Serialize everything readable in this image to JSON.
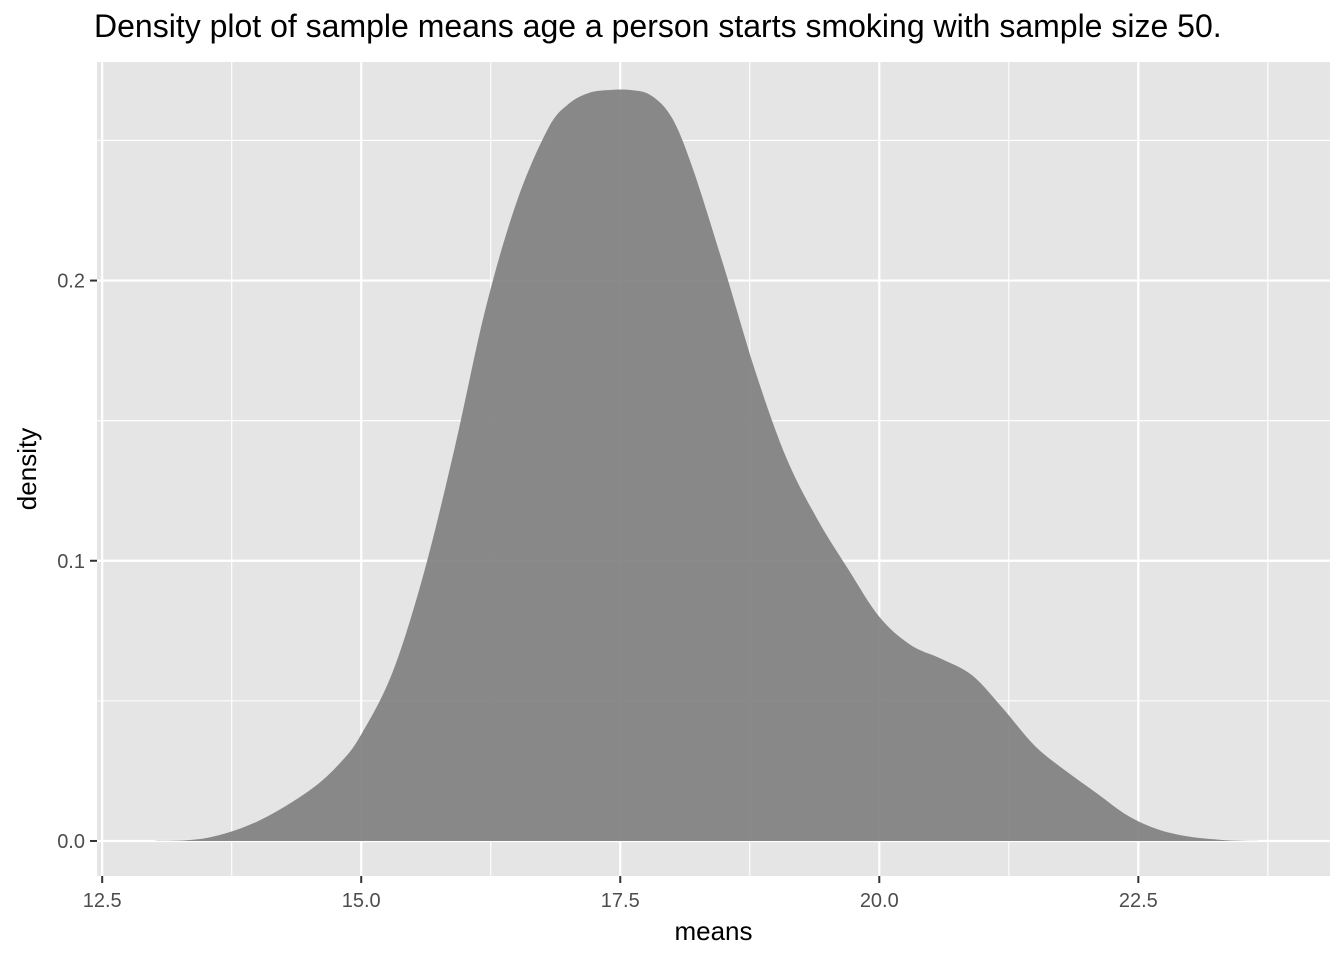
{
  "chart_data": {
    "type": "area",
    "title": "Density plot of sample means age a person starts smoking with sample size 50.",
    "xlabel": "means",
    "ylabel": "density",
    "xlim": [
      12.45,
      24.35
    ],
    "ylim": [
      -0.0125,
      0.278
    ],
    "x_ticks": [
      12.5,
      15.0,
      17.5,
      20.0,
      22.5
    ],
    "x_tick_labels": [
      "12.5",
      "15.0",
      "17.5",
      "20.0",
      "22.5"
    ],
    "y_ticks": [
      0.0,
      0.1,
      0.2
    ],
    "y_tick_labels": [
      "0.0",
      "0.1",
      "0.2"
    ],
    "grid": true,
    "colors": {
      "panel": "#e5e5e5",
      "grid": "#ffffff",
      "fill": "#808080"
    },
    "series": [
      {
        "x": [
          13.0,
          13.5,
          14.0,
          14.5,
          14.8,
          15.0,
          15.3,
          15.6,
          15.9,
          16.2,
          16.5,
          16.8,
          17.0,
          17.2,
          17.4,
          17.6,
          17.8,
          18.0,
          18.2,
          18.5,
          18.8,
          19.1,
          19.4,
          19.7,
          20.0,
          20.3,
          20.6,
          20.9,
          21.2,
          21.5,
          21.8,
          22.1,
          22.4,
          22.7,
          23.0,
          23.3,
          23.5,
          23.8
        ],
        "y": [
          0.0,
          0.001,
          0.007,
          0.018,
          0.028,
          0.038,
          0.06,
          0.095,
          0.14,
          0.19,
          0.228,
          0.254,
          0.263,
          0.267,
          0.268,
          0.268,
          0.266,
          0.258,
          0.24,
          0.205,
          0.168,
          0.137,
          0.115,
          0.097,
          0.08,
          0.07,
          0.065,
          0.059,
          0.047,
          0.034,
          0.025,
          0.017,
          0.009,
          0.004,
          0.0015,
          0.0004,
          0.0001,
          0.0
        ]
      }
    ]
  }
}
